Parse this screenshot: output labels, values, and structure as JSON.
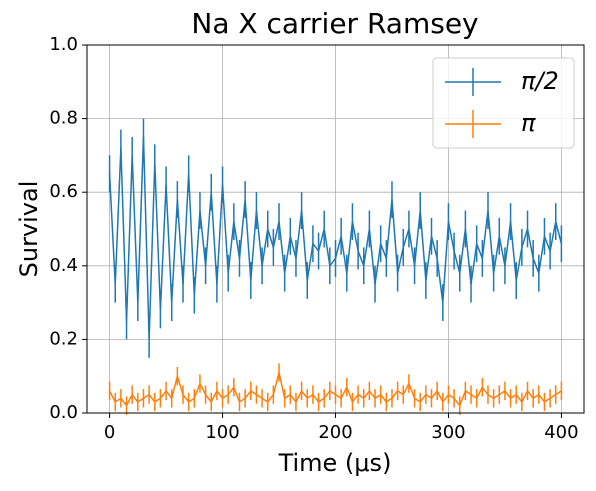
{
  "chart_data": {
    "type": "errorbar",
    "title": "Na X carrier Ramsey",
    "x_label": "Time (μs)",
    "y_label": "Survival",
    "x": [
      0,
      5,
      10,
      15,
      20,
      25,
      30,
      35,
      40,
      45,
      50,
      55,
      60,
      65,
      70,
      75,
      80,
      85,
      90,
      95,
      100,
      105,
      110,
      115,
      120,
      125,
      130,
      135,
      140,
      145,
      150,
      155,
      160,
      165,
      170,
      175,
      180,
      185,
      190,
      195,
      200,
      205,
      210,
      215,
      220,
      225,
      230,
      235,
      240,
      245,
      250,
      255,
      260,
      265,
      270,
      275,
      280,
      285,
      290,
      295,
      300,
      305,
      310,
      315,
      320,
      325,
      330,
      335,
      340,
      345,
      350,
      355,
      360,
      365,
      370,
      375,
      380,
      385,
      390,
      395,
      400
    ],
    "series": [
      {
        "name": "π/2",
        "color": "#1f77b4",
        "error": 0.05,
        "values": [
          0.65,
          0.35,
          0.72,
          0.25,
          0.7,
          0.3,
          0.75,
          0.2,
          0.68,
          0.28,
          0.62,
          0.3,
          0.58,
          0.35,
          0.65,
          0.32,
          0.55,
          0.4,
          0.6,
          0.35,
          0.62,
          0.38,
          0.52,
          0.42,
          0.58,
          0.36,
          0.55,
          0.4,
          0.5,
          0.45,
          0.52,
          0.38,
          0.48,
          0.42,
          0.55,
          0.36,
          0.46,
          0.44,
          0.5,
          0.4,
          0.42,
          0.48,
          0.38,
          0.52,
          0.44,
          0.4,
          0.5,
          0.35,
          0.46,
          0.42,
          0.58,
          0.38,
          0.45,
          0.5,
          0.4,
          0.55,
          0.36,
          0.48,
          0.42,
          0.3,
          0.52,
          0.44,
          0.38,
          0.5,
          0.35,
          0.46,
          0.42,
          0.55,
          0.38,
          0.48,
          0.4,
          0.52,
          0.36,
          0.45,
          0.5,
          0.42,
          0.38,
          0.48,
          0.44,
          0.52,
          0.46
        ]
      },
      {
        "name": "π",
        "color": "#ff7f0e",
        "error": 0.025,
        "values": [
          0.06,
          0.03,
          0.04,
          0.02,
          0.05,
          0.03,
          0.04,
          0.05,
          0.03,
          0.04,
          0.06,
          0.04,
          0.1,
          0.05,
          0.03,
          0.04,
          0.08,
          0.05,
          0.03,
          0.06,
          0.04,
          0.05,
          0.07,
          0.03,
          0.04,
          0.06,
          0.05,
          0.04,
          0.03,
          0.05,
          0.11,
          0.04,
          0.05,
          0.03,
          0.06,
          0.04,
          0.05,
          0.03,
          0.04,
          0.06,
          0.05,
          0.04,
          0.07,
          0.03,
          0.05,
          0.04,
          0.06,
          0.04,
          0.05,
          0.03,
          0.04,
          0.06,
          0.05,
          0.08,
          0.04,
          0.03,
          0.05,
          0.04,
          0.06,
          0.03,
          0.05,
          0.04,
          0.02,
          0.06,
          0.05,
          0.04,
          0.07,
          0.05,
          0.04,
          0.05,
          0.06,
          0.04,
          0.05,
          0.03,
          0.06,
          0.04,
          0.05,
          0.03,
          0.04,
          0.05,
          0.06
        ]
      }
    ],
    "xlim": [
      -20,
      420
    ],
    "ylim": [
      0,
      1
    ],
    "xticks": [
      0,
      100,
      200,
      300,
      400
    ],
    "yticks": [
      {
        "value": 0,
        "label": "0.0"
      },
      {
        "value": 0.2,
        "label": "0.2"
      },
      {
        "value": 0.4,
        "label": "0.4"
      },
      {
        "value": 0.6,
        "label": "0.6"
      },
      {
        "value": 0.8,
        "label": "0.8"
      },
      {
        "value": 1,
        "label": "1.0"
      }
    ],
    "grid": true,
    "legend": "upper right"
  }
}
